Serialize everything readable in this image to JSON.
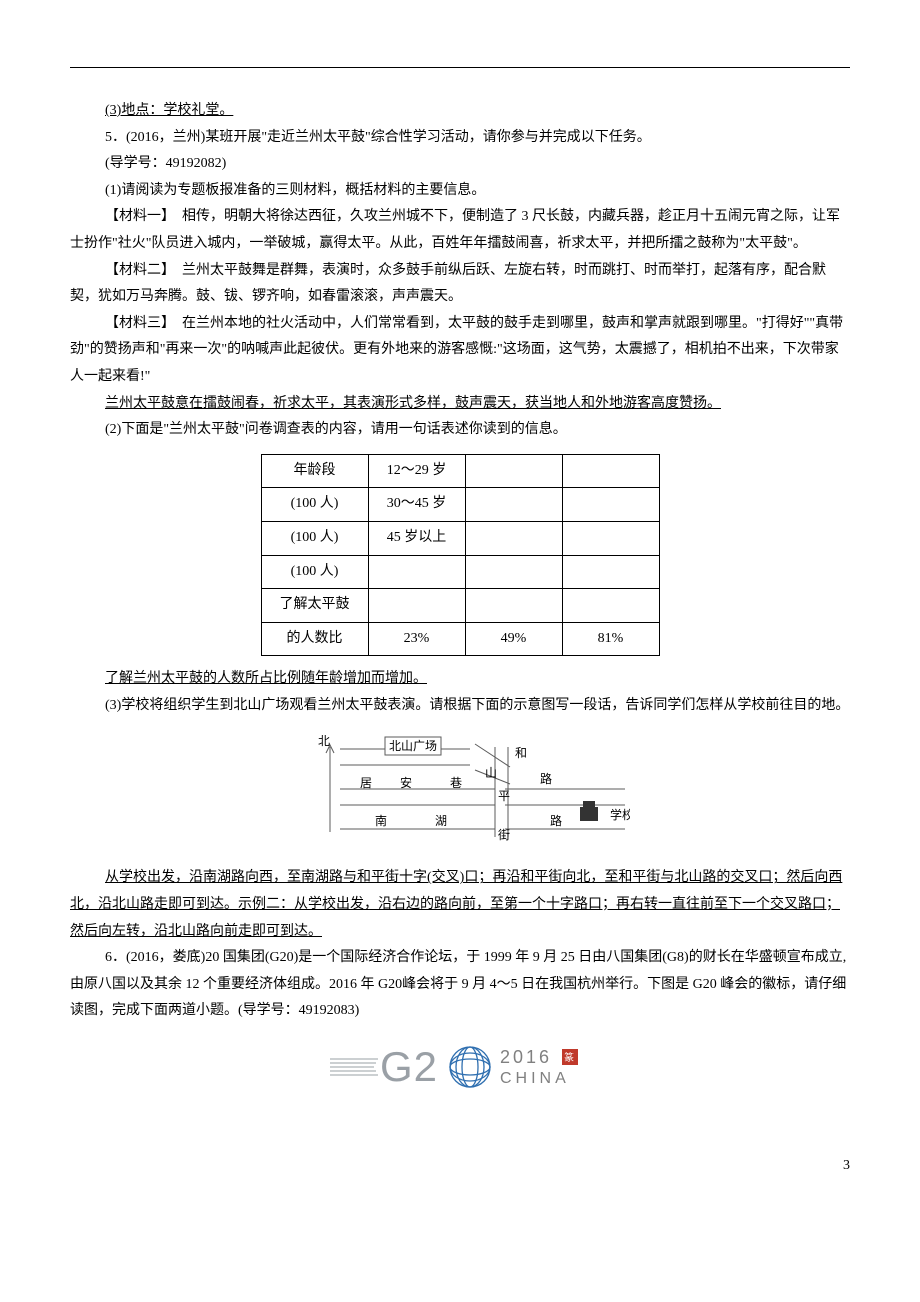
{
  "para": {
    "loc": "(3)地点：学校礼堂。",
    "q5_intro": "5．(2016，兰州)某班开展\"走近兰州太平鼓\"综合性学习活动，请你参与并完成以下任务。",
    "q5_num": "(导学号：49192082)",
    "q5_1": "(1)请阅读为专题板报准备的三则材料，概括材料的主要信息。",
    "m1_label": "【材料一】",
    "m1_body": "　相传，明朝大将徐达西征，久攻兰州城不下，便制造了 3 尺长鼓，内藏兵器，趁正月十五闹元宵之际，让军士扮作\"社火\"队员进入城内，一举破城，赢得太平。从此，百姓年年擂鼓闹喜，祈求太平，并把所擂之鼓称为\"太平鼓\"。",
    "m2_label": "【材料二】",
    "m2_body": "　兰州太平鼓舞是群舞，表演时，众多鼓手前纵后跃、左旋右转，时而跳打、时而举打，起落有序，配合默契，犹如万马奔腾。鼓、钹、锣齐响，如春雷滚滚，声声震天。",
    "m3_label": "【材料三】",
    "m3_body": "　在兰州本地的社火活动中，人们常常看到，太平鼓的鼓手走到哪里，鼓声和掌声就跟到哪里。\"打得好\"\"真带劲\"的赞扬声和\"再来一次\"的呐喊声此起彼伏。更有外地来的游客感慨:\"这场面，这气势，太震撼了，相机拍不出来，下次带家人一起来看!\"",
    "q5_1_ans": "兰州太平鼓意在擂鼓闹春，祈求太平，其表演形式多样，鼓声震天，获当地人和外地游客高度赞扬。",
    "q5_2": "(2)下面是\"兰州太平鼓\"问卷调查表的内容，请用一句话表述你读到的信息。",
    "q5_2_ans": "了解兰州太平鼓的人数所占比例随年龄增加而增加。",
    "q5_3_a": "(3)学校将组织学生到北山广场观看兰州太平鼓表演。请根据下面的示意图写一段话，告诉同学们怎样从学校前往目的地。",
    "q5_3_ans": "从学校出发，沿南湖路向西，至南湖路与和平街十字(交叉)口；再沿和平街向北，至和平街与北山路的交叉口；然后向西北，沿北山路走即可到达。示例二：从学校出发，沿右边的路向前，至第一个十字路口；再右转一直往前至下一个交叉路口；然后向左转，沿北山路向前走即可到达。",
    "q6_intro": "6．(2016，娄底)20 国集团(G20)是一个国际经济合作论坛，于 1999 年 9 月 25 日由八国集团(G8)的财长在华盛顿宣布成立,由原八国以及其余 12 个重要经济体组成。2016 年 G20峰会将于 9 月 4～5 日在我国杭州举行。下图是 G20 峰会的徽标，请仔细读图，完成下面两道小题。(导学号：49192083)"
  },
  "table": {
    "rows": [
      [
        "年龄段",
        "12～29 岁",
        "",
        ""
      ],
      [
        "(100 人)",
        "30～45 岁",
        "",
        ""
      ],
      [
        "(100 人)",
        "45 岁以上",
        "",
        ""
      ],
      [
        "(100 人)",
        "",
        "",
        ""
      ],
      [
        "了解太平鼓",
        "",
        "",
        ""
      ],
      [
        "的人数比",
        "23%",
        "49%",
        "81%"
      ]
    ]
  },
  "map": {
    "north": "北",
    "place": "北山广场",
    "r1a": "和",
    "r1b": "山",
    "r2a": "居",
    "r2b": "安",
    "r2c": "巷",
    "r3a": "平",
    "r3b": "路",
    "r4a": "南",
    "r4b": "湖",
    "r4c": "街",
    "r4d": "路",
    "school": "学校"
  },
  "logo": {
    "g20": "G2",
    "year": "2016",
    "country": "CHINA",
    "stamp": "篆"
  },
  "page_num": "3",
  "colors": {
    "line": "#5b5b5b",
    "logo_gray": "#9aa0a6",
    "logo_blue": "#2f6fb0",
    "logo_red": "#c0392b"
  }
}
